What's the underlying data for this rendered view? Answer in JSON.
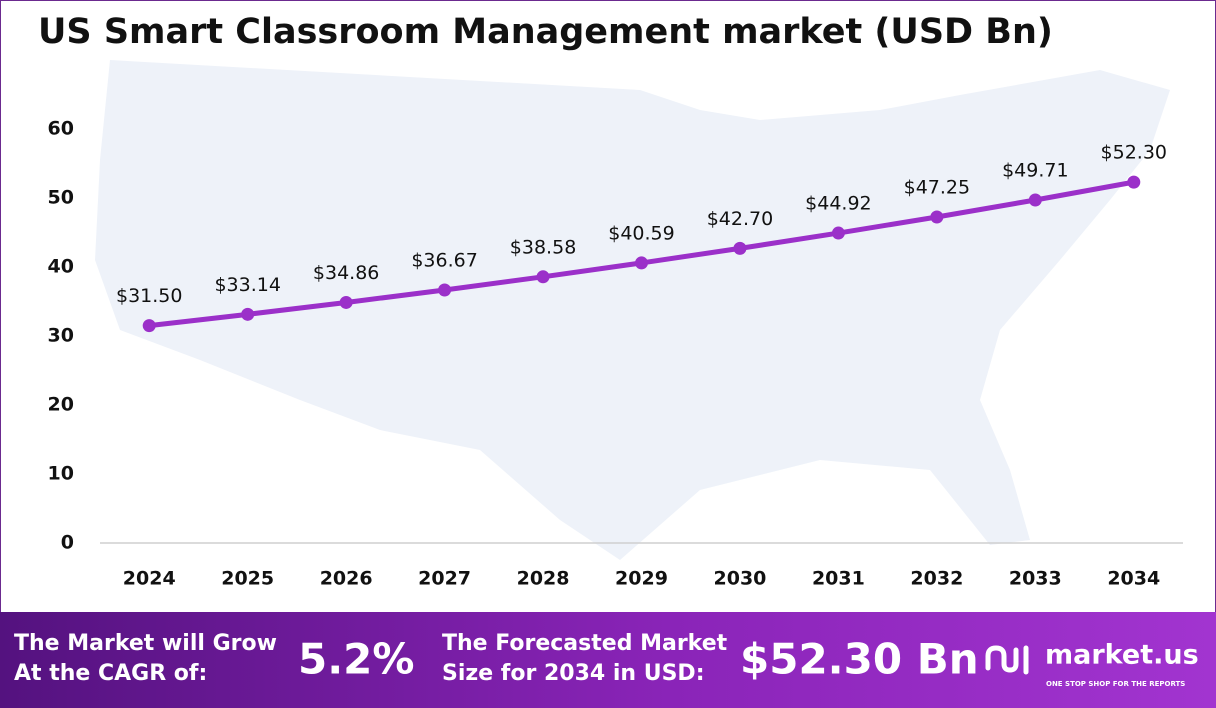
{
  "chart_data": {
    "type": "line",
    "title": "US Smart Classroom Management market (USD Bn)",
    "categories": [
      "2024",
      "2025",
      "2026",
      "2027",
      "2028",
      "2029",
      "2030",
      "2031",
      "2032",
      "2033",
      "2034"
    ],
    "values": [
      31.5,
      33.14,
      34.86,
      36.67,
      38.58,
      40.59,
      42.7,
      44.92,
      47.25,
      49.71,
      52.3
    ],
    "value_labels": [
      "$31.50",
      "$33.14",
      "$34.86",
      "$36.67",
      "$38.58",
      "$40.59",
      "$42.70",
      "$44.92",
      "$47.25",
      "$49.71",
      "$52.30"
    ],
    "color": "#9b30c9",
    "ylim": [
      0,
      60
    ],
    "yticks": [
      0,
      10,
      20,
      30,
      40,
      50,
      60
    ],
    "grid": false
  },
  "footer": {
    "cagr_text": [
      "The Market will Grow",
      "At the CAGR of:"
    ],
    "cagr_value": "5.2%",
    "forecast_text": [
      "The Forecasted Market",
      "Size for 2034 in USD:"
    ],
    "forecast_value": "$52.30 Bn",
    "brand": "market.us",
    "tagline": "ONE STOP SHOP FOR THE REPORTS"
  }
}
